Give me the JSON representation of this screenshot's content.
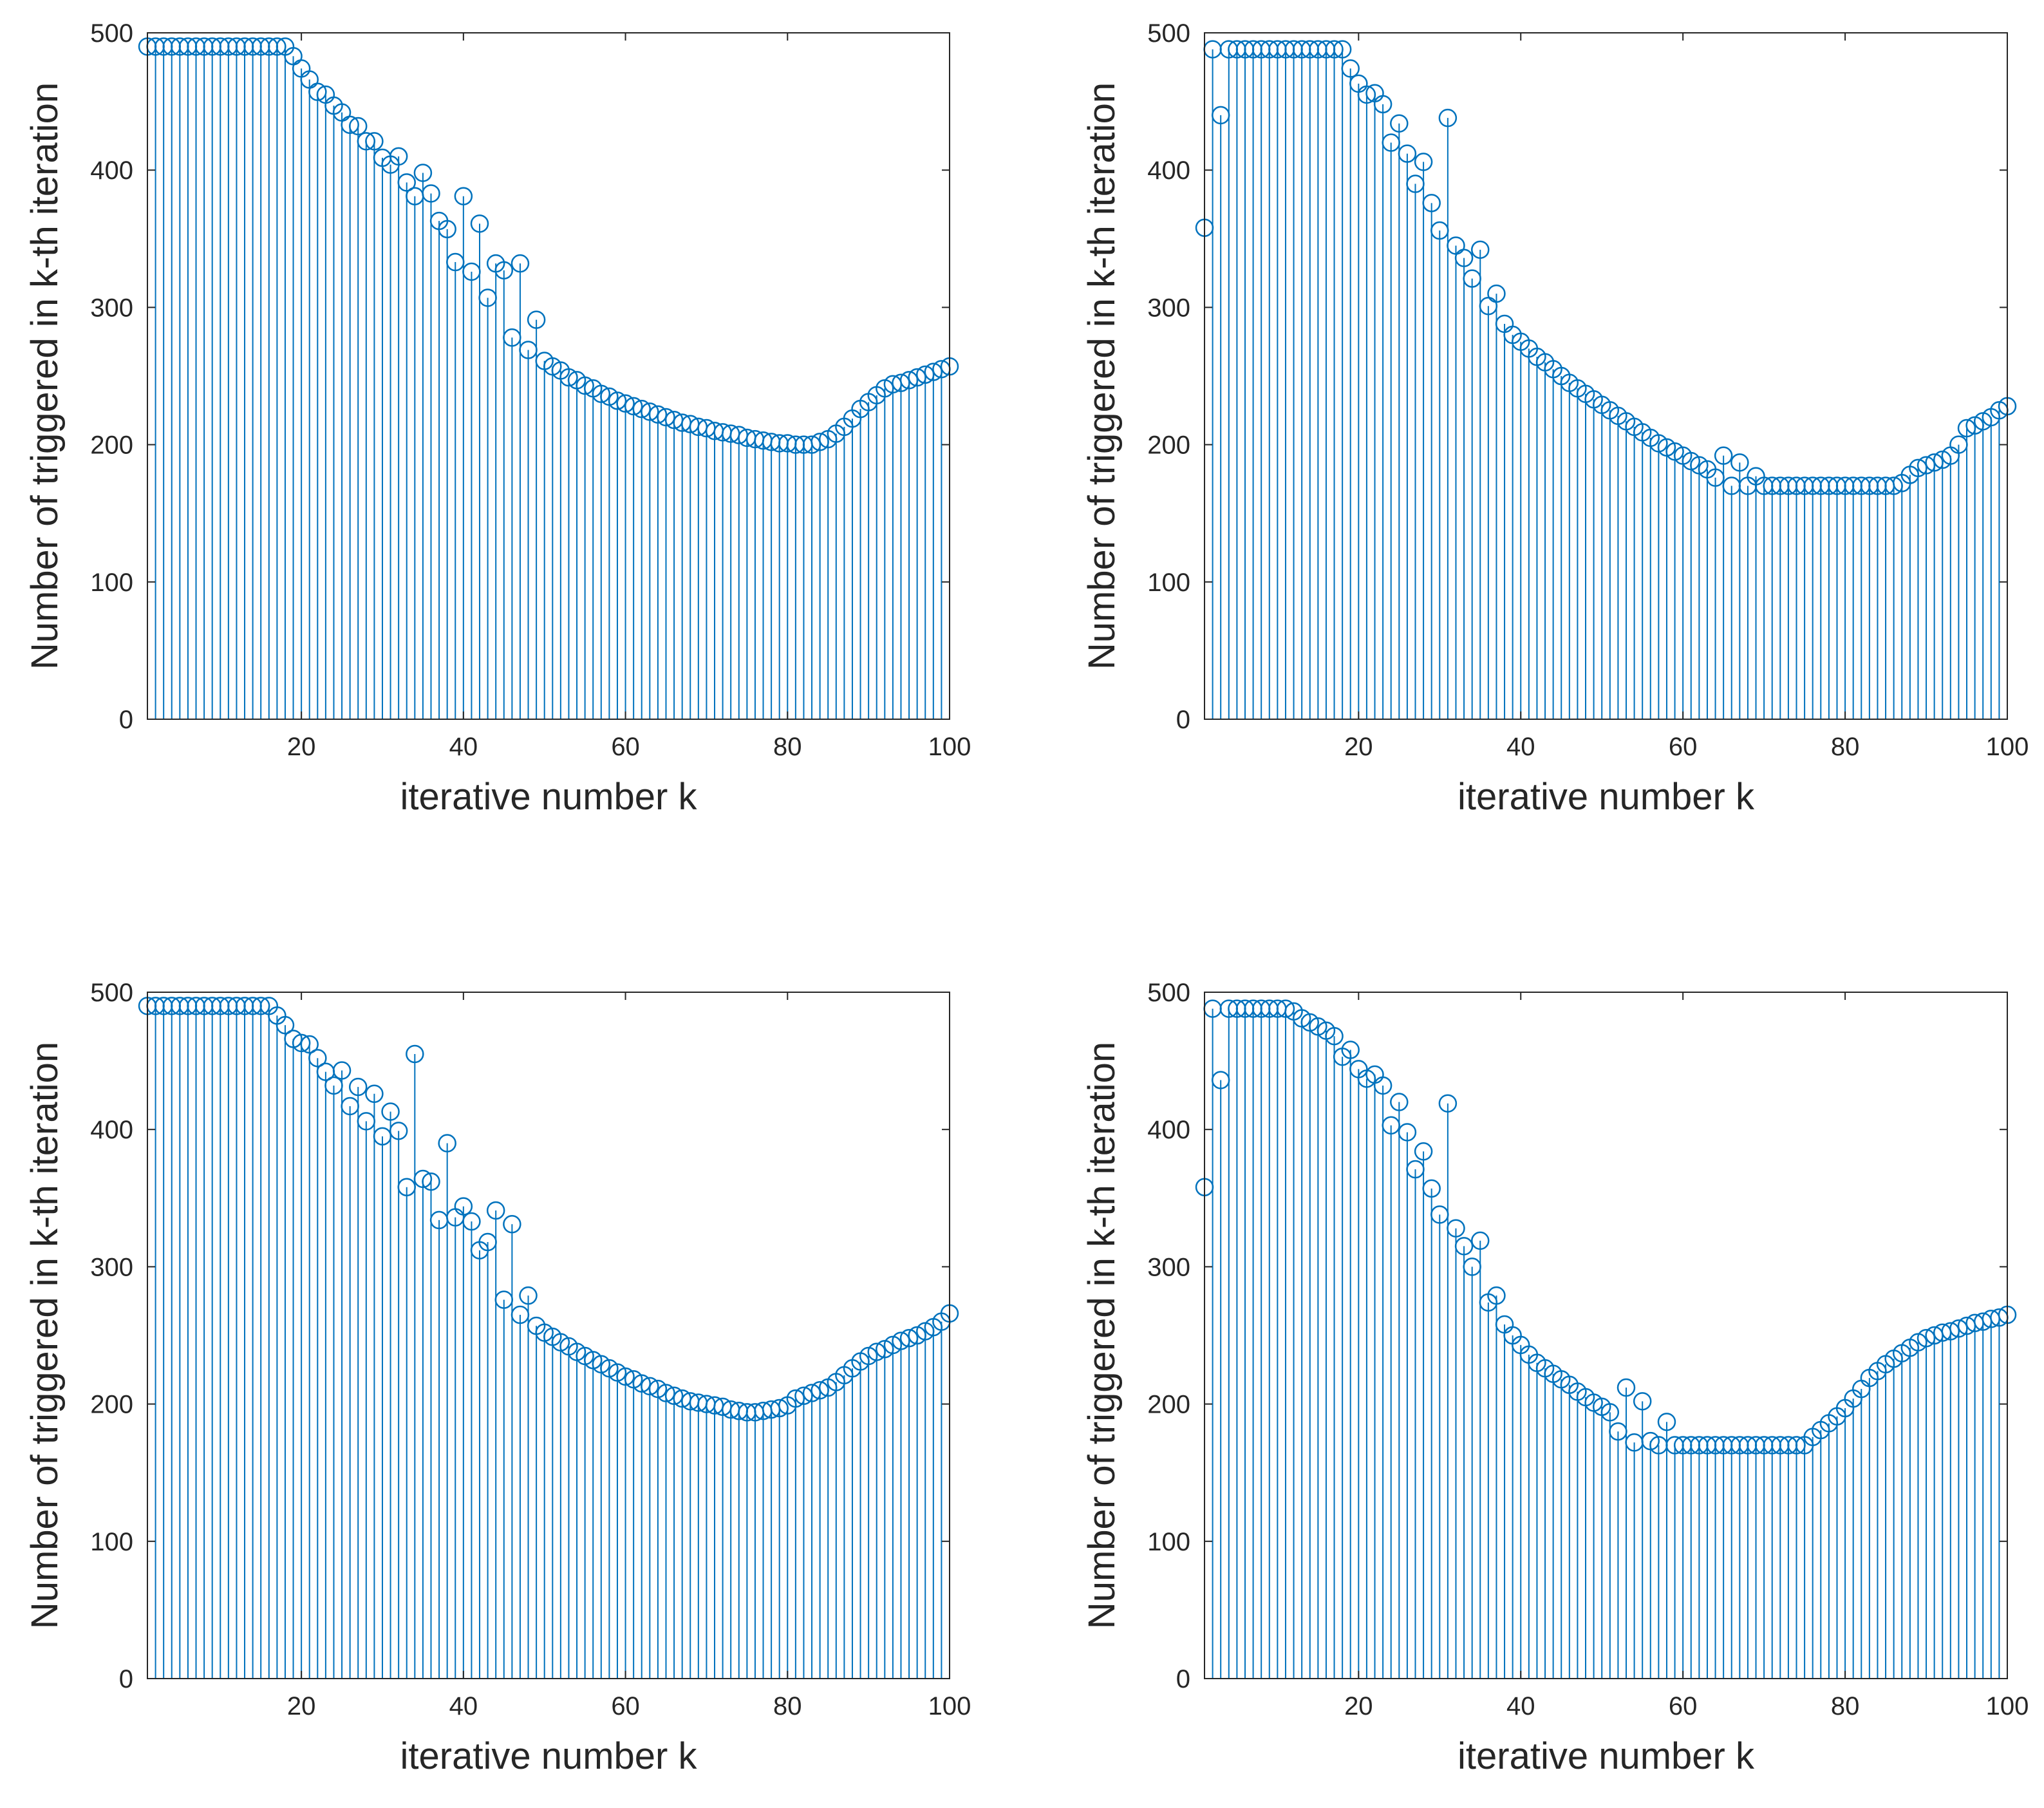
{
  "figure": {
    "series_color": "#0072BD"
  },
  "chart_data": [
    {
      "type": "stem",
      "xlabel": "iterative number k",
      "ylabel": "Number of triggered in k-th iteration",
      "xlim": [
        1,
        100
      ],
      "ylim": [
        0,
        500
      ],
      "xticks": [
        20,
        40,
        60,
        80,
        100
      ],
      "yticks": [
        0,
        100,
        200,
        300,
        400,
        500
      ],
      "x_start": 1,
      "values": [
        490,
        490,
        490,
        490,
        490,
        490,
        490,
        490,
        490,
        490,
        490,
        490,
        490,
        490,
        490,
        490,
        490,
        490,
        483,
        474,
        466,
        457,
        455,
        447,
        442,
        433,
        432,
        421,
        421,
        409,
        404,
        410,
        391,
        381,
        398,
        383,
        363,
        357,
        333,
        381,
        326,
        361,
        307,
        332,
        327,
        278,
        332,
        269,
        291,
        261,
        257,
        254,
        249,
        247,
        243,
        241,
        237,
        235,
        232,
        230,
        228,
        226,
        224,
        222,
        220,
        218,
        216,
        215,
        213,
        212,
        210,
        209,
        208,
        207,
        205,
        204,
        203,
        202,
        201,
        201,
        200,
        200,
        200,
        202,
        204,
        208,
        213,
        219,
        226,
        231,
        236,
        241,
        244,
        245,
        247,
        249,
        251,
        253,
        255,
        257
      ]
    },
    {
      "type": "stem",
      "xlabel": "iterative number k",
      "ylabel": "Number of triggered in k-th iteration",
      "xlim": [
        1,
        100
      ],
      "ylim": [
        0,
        500
      ],
      "xticks": [
        20,
        40,
        60,
        80,
        100
      ],
      "yticks": [
        0,
        100,
        200,
        300,
        400,
        500
      ],
      "x_start": 1,
      "values": [
        358,
        488,
        440,
        488,
        488,
        488,
        488,
        488,
        488,
        488,
        488,
        488,
        488,
        488,
        488,
        488,
        488,
        488,
        474,
        463,
        455,
        456,
        448,
        420,
        434,
        412,
        390,
        406,
        376,
        356,
        438,
        345,
        336,
        321,
        342,
        301,
        310,
        288,
        280,
        275,
        270,
        264,
        260,
        255,
        250,
        245,
        241,
        237,
        233,
        229,
        225,
        221,
        217,
        213,
        209,
        205,
        201,
        198,
        195,
        192,
        188,
        185,
        182,
        176,
        192,
        170,
        187,
        170,
        177,
        170,
        170,
        170,
        170,
        170,
        170,
        170,
        170,
        170,
        170,
        170,
        170,
        170,
        170,
        170,
        170,
        170,
        172,
        178,
        183,
        185,
        187,
        189,
        192,
        200,
        212,
        214,
        217,
        220,
        225,
        228
      ]
    },
    {
      "type": "stem",
      "xlabel": "iterative number k",
      "ylabel": "Number of triggered in k-th iteration",
      "xlim": [
        1,
        100
      ],
      "ylim": [
        0,
        500
      ],
      "xticks": [
        20,
        40,
        60,
        80,
        100
      ],
      "yticks": [
        0,
        100,
        200,
        300,
        400,
        500
      ],
      "x_start": 1,
      "values": [
        490,
        490,
        490,
        490,
        490,
        490,
        490,
        490,
        490,
        490,
        490,
        490,
        490,
        490,
        490,
        490,
        483,
        476,
        466,
        463,
        462,
        452,
        442,
        432,
        443,
        417,
        431,
        406,
        426,
        395,
        413,
        399,
        358,
        455,
        364,
        362,
        334,
        390,
        336,
        344,
        333,
        312,
        318,
        341,
        276,
        331,
        265,
        279,
        257,
        252,
        249,
        245,
        242,
        238,
        235,
        232,
        229,
        226,
        223,
        220,
        218,
        215,
        213,
        211,
        208,
        206,
        204,
        202,
        201,
        200,
        199,
        198,
        196,
        195,
        194,
        194,
        195,
        196,
        197,
        199,
        204,
        206,
        208,
        210,
        212,
        216,
        221,
        226,
        231,
        235,
        238,
        240,
        243,
        246,
        248,
        250,
        253,
        256,
        260,
        266
      ]
    },
    {
      "type": "stem",
      "xlabel": "iterative number k",
      "ylabel": "Number of triggered in k-th iteration",
      "xlim": [
        1,
        100
      ],
      "ylim": [
        0,
        500
      ],
      "xticks": [
        20,
        40,
        60,
        80,
        100
      ],
      "yticks": [
        0,
        100,
        200,
        300,
        400,
        500
      ],
      "x_start": 1,
      "values": [
        358,
        488,
        436,
        488,
        488,
        488,
        488,
        488,
        488,
        488,
        488,
        486,
        481,
        478,
        475,
        472,
        468,
        453,
        458,
        444,
        437,
        440,
        432,
        403,
        420,
        398,
        371,
        384,
        357,
        338,
        419,
        328,
        315,
        300,
        319,
        274,
        279,
        258,
        250,
        243,
        236,
        230,
        226,
        222,
        218,
        214,
        209,
        205,
        201,
        198,
        194,
        180,
        212,
        172,
        202,
        173,
        170,
        187,
        170,
        170,
        170,
        170,
        170,
        170,
        170,
        170,
        170,
        170,
        170,
        170,
        170,
        170,
        170,
        170,
        170,
        176,
        181,
        186,
        191,
        197,
        204,
        211,
        219,
        224,
        229,
        233,
        237,
        241,
        245,
        248,
        250,
        252,
        253,
        255,
        257,
        259,
        260,
        262,
        263,
        265
      ]
    }
  ]
}
